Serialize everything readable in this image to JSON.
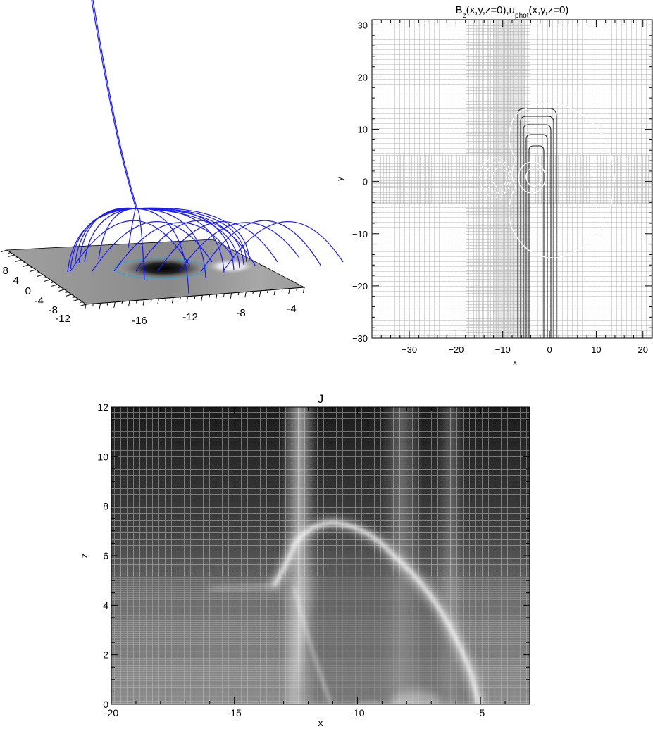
{
  "chart_data": [
    {
      "id": "panel-3d",
      "type": "surface-3d",
      "x_ticks": [
        "-16",
        "-12",
        "-8",
        "-4"
      ],
      "y_ticks": [
        "-12",
        "-8",
        "-4",
        "0",
        "4",
        "8"
      ],
      "colors": {
        "field_lines": "#1a1aff",
        "contour": "#3aa0c8",
        "plane": "#9a9a9a"
      }
    },
    {
      "id": "panel-bz",
      "type": "contour",
      "title_main": "B",
      "title_sub1": "z",
      "title_mid": "(x,y,z=0),u",
      "title_sub2": "phot",
      "title_end": "(x,y,z=0)",
      "xlabel": "x",
      "ylabel": "y",
      "xlim": [
        -38,
        22
      ],
      "ylim": [
        -30,
        31
      ],
      "x_ticks": [
        -30,
        -20,
        -10,
        0,
        10,
        20
      ],
      "y_ticks": [
        -30,
        -20,
        -10,
        0,
        10,
        20,
        30
      ],
      "grid": true,
      "colors": {
        "grid": "#a8a8a8",
        "negative": "#ffffff",
        "positive": "#000000"
      }
    },
    {
      "id": "panel-j",
      "type": "heatmap",
      "title": "J",
      "xlabel": "x",
      "ylabel": "z",
      "xlim": [
        -20,
        -3
      ],
      "ylim": [
        0,
        12
      ],
      "x_ticks": [
        -20,
        -15,
        -10,
        -5
      ],
      "y_ticks": [
        0,
        2,
        4,
        6,
        8,
        10,
        12
      ],
      "grid": true,
      "colors": {
        "background": "#222222",
        "ridge": "#ffffff"
      }
    }
  ]
}
